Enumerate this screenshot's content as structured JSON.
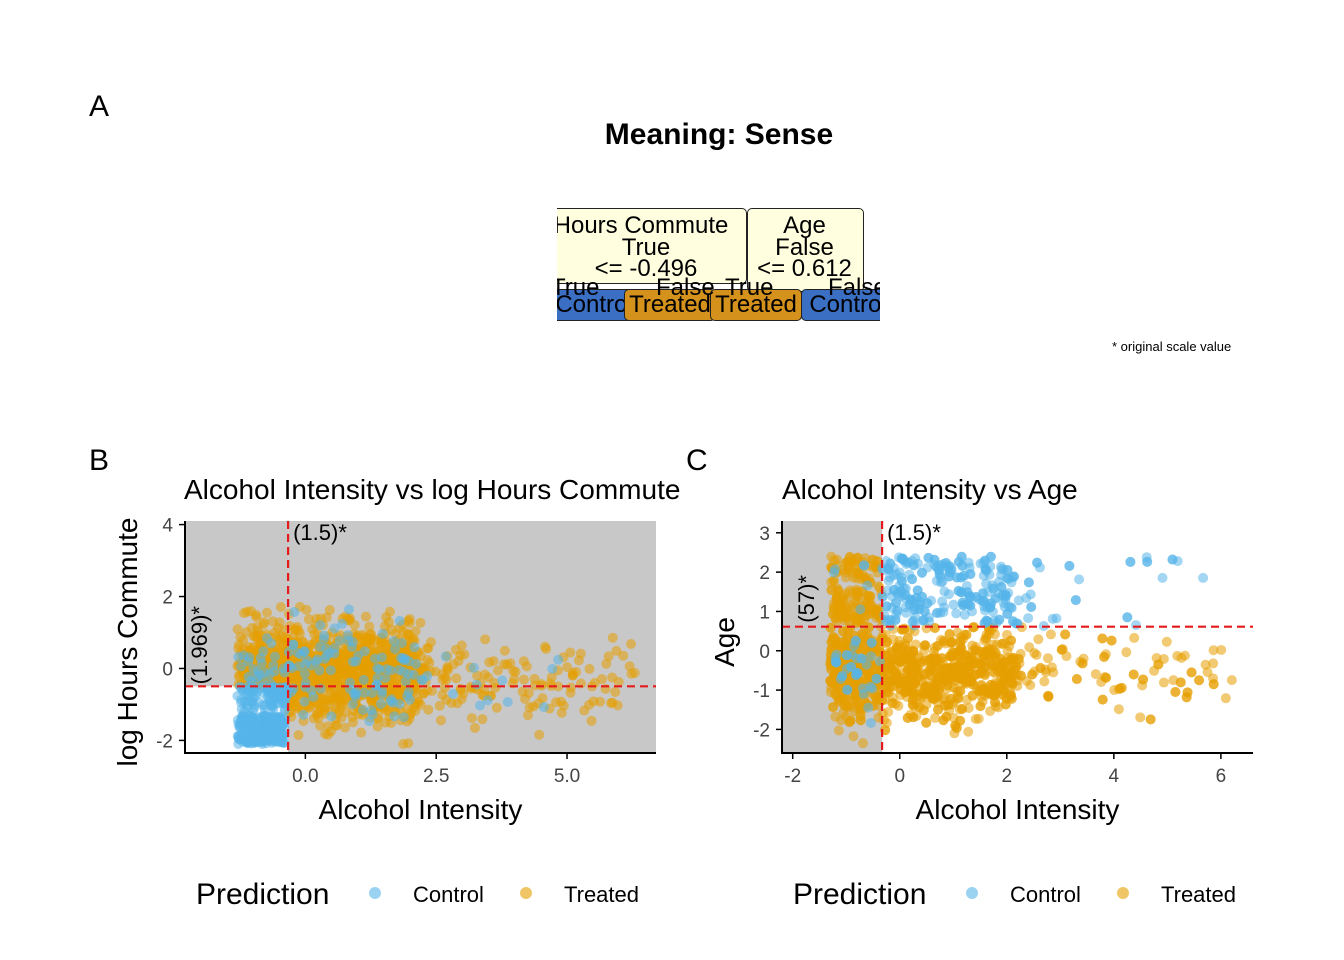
{
  "panel_labels": {
    "a": "A",
    "b": "B",
    "c": "C"
  },
  "title": "Meaning: Sense",
  "footnote": "* original scale value",
  "tree": {
    "nodes": [
      {
        "variable": "Hours Commute",
        "direction": "True",
        "rule": "<= -0.496"
      },
      {
        "variable": "Age",
        "direction": "False",
        "rule": "<= 0.612"
      }
    ],
    "branch_labels": [
      "True",
      "False",
      "True",
      "False"
    ],
    "leaves": [
      "Control",
      "Treated",
      "Treated",
      "Control"
    ]
  },
  "colors": {
    "control": "#56b4e9",
    "treated": "#e69f00",
    "shaded_region": "#c8c8c8",
    "threshold_line": "#e41a1c",
    "leaf_control": "#3a6fc4",
    "leaf_treated": "#d4921c",
    "node_fill": "#ffffe0"
  },
  "chart_data": [
    {
      "type": "scatter",
      "panel": "B",
      "title": "Alcohol Intensity vs log Hours Commute",
      "xlabel": "Alcohol Intensity",
      "ylabel": "log Hours Commute",
      "xlim": [
        -2.3,
        6.7
      ],
      "ylim": [
        -2.35,
        4.1
      ],
      "xticks": [
        0.0,
        2.5,
        5.0
      ],
      "xtick_labels": [
        "0.0",
        "2.5",
        "5.0"
      ],
      "yticks": [
        -2,
        0,
        2,
        4
      ],
      "ytick_labels": [
        "-2",
        "0",
        "2",
        "4"
      ],
      "grid": false,
      "vline": {
        "x": -0.33,
        "label": "(1.5)*"
      },
      "hline": {
        "y": -0.496,
        "label": "(1.969)*"
      },
      "shaded": "all except x < -0.33 and y < -0.496",
      "series": [
        {
          "name": "Control"
        },
        {
          "name": "Treated"
        }
      ]
    },
    {
      "type": "scatter",
      "panel": "C",
      "title": "Alcohol Intensity vs Age",
      "xlabel": "Alcohol Intensity",
      "ylabel": "Age",
      "xlim": [
        -2.2,
        6.6
      ],
      "ylim": [
        -2.6,
        3.3
      ],
      "xticks": [
        -2,
        0,
        2,
        4,
        6
      ],
      "xtick_labels": [
        "-2",
        "0",
        "2",
        "4",
        "6"
      ],
      "yticks": [
        -2,
        -1,
        0,
        1,
        2,
        3
      ],
      "ytick_labels": [
        "-2",
        "-1",
        "0",
        "1",
        "2",
        "3"
      ],
      "grid": false,
      "vline": {
        "x": -0.33,
        "label": "(1.5)*"
      },
      "hline": {
        "y": 0.612,
        "label": "(57)*"
      },
      "shaded": "x < -0.33",
      "series": [
        {
          "name": "Control"
        },
        {
          "name": "Treated"
        }
      ]
    }
  ],
  "legend": {
    "title": "Prediction",
    "items": [
      "Control",
      "Treated"
    ]
  }
}
